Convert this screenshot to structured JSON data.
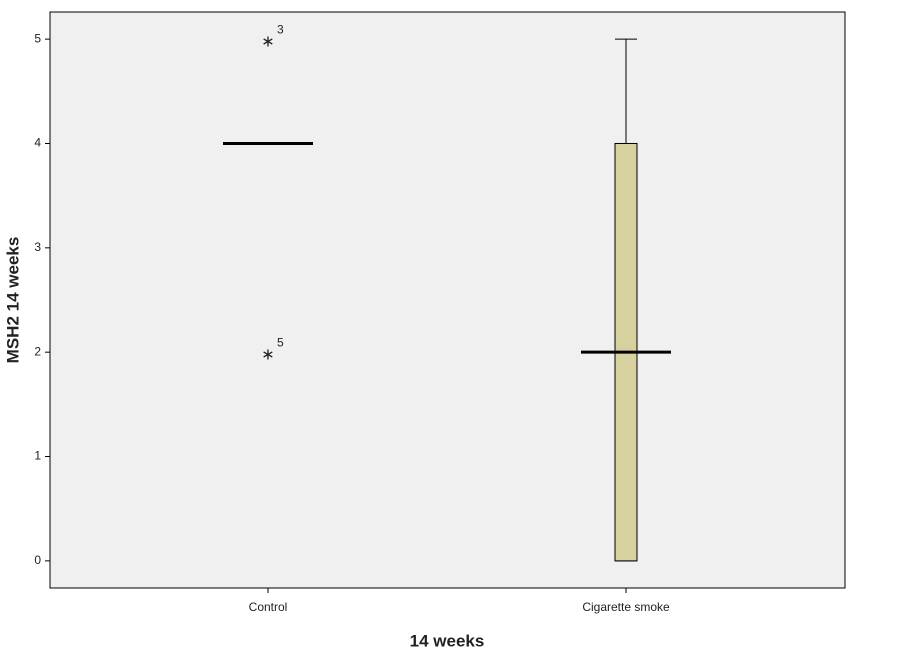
{
  "chart_data": {
    "type": "box",
    "x_label": "14 weeks",
    "y_label": "MSH2 14 weeks",
    "categories": [
      "Control",
      "Cigarette smoke"
    ],
    "boxes": [
      {
        "min": 4,
        "q1": 4,
        "median": 4,
        "q3": 4,
        "max": 4,
        "outliers": [
          5,
          2
        ],
        "outlier_labels": [
          "3",
          "5"
        ]
      },
      {
        "min": 0,
        "q1": 0,
        "median": 2,
        "q3": 4,
        "max": 5
      }
    ],
    "color": "#d6d19e",
    "ylim": [
      -0.26,
      5.26
    ],
    "yticks": [
      0,
      1,
      2,
      3,
      4,
      5
    ]
  }
}
